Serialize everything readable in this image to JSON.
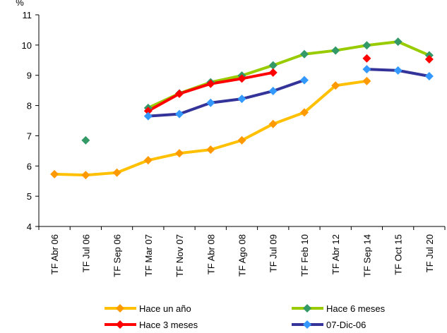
{
  "chart_data": {
    "type": "line",
    "ylabel": "%",
    "ylim": [
      4,
      11
    ],
    "yticks": [
      4,
      5,
      6,
      7,
      8,
      9,
      10,
      11
    ],
    "grid": false,
    "legend_position": "bottom",
    "categories": [
      "TF Abr 06",
      "TF Jul 06",
      "TF Sep 06",
      "TF Mar 07",
      "TF Nov 07",
      "TF Abr 08",
      "TF Ago 08",
      "TF Jul 09",
      "TF Feb 10",
      "TF Abr 12",
      "TF Sep 14",
      "TF Oct 15",
      "TF Jul 20"
    ],
    "series": [
      {
        "name": "Hace un año",
        "line_color": "#ffc000",
        "marker_color": "#ff9900",
        "values": [
          5.73,
          5.7,
          5.78,
          6.19,
          6.42,
          6.54,
          6.85,
          7.39,
          7.77,
          8.66,
          8.81,
          null,
          null
        ]
      },
      {
        "name": "Hace 6 meses",
        "line_color": "#99cc00",
        "marker_color": "#339966",
        "values": [
          null,
          6.85,
          null,
          7.92,
          8.4,
          8.77,
          8.99,
          9.33,
          9.7,
          9.82,
          9.99,
          10.11,
          9.66
        ]
      },
      {
        "name": "Hace 3 meses",
        "line_color": "#ff0000",
        "marker_color": "#ff0000",
        "values": [
          null,
          null,
          null,
          7.82,
          8.39,
          8.72,
          8.89,
          9.09,
          null,
          null,
          9.56,
          null,
          9.53
        ]
      },
      {
        "name": "07-Dic-06",
        "line_color": "#333399",
        "marker_color": "#3399ff",
        "values": [
          null,
          null,
          null,
          7.65,
          7.72,
          8.09,
          8.22,
          8.48,
          8.84,
          null,
          9.2,
          9.16,
          8.97
        ]
      }
    ]
  }
}
